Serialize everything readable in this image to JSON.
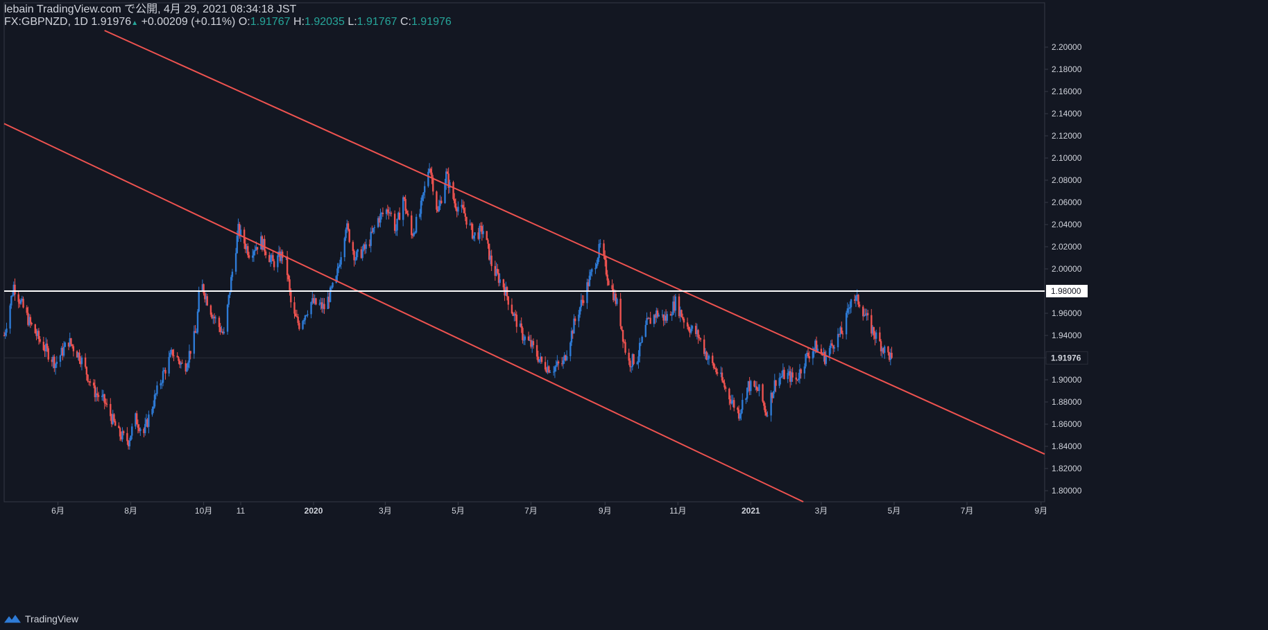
{
  "header": {
    "publisher": "lebain TradingView.com で公開, 4月 29, 2021 08:34:18 JST",
    "symbol": "FX:GBPNZD, 1D",
    "last": "1.91976",
    "change_arrow": "▲",
    "change": "+0.00209 (+0.11%)",
    "o_label": "O:",
    "o_value": "1.91767",
    "h_label": "H:",
    "h_value": "1.92035",
    "l_label": "L:",
    "l_value": "1.91767",
    "c_label": "C:",
    "c_value": "1.91976"
  },
  "footer": {
    "brand": "TradingView",
    "logo_icon": "tradingview-logo-icon"
  },
  "colors": {
    "bg": "#131722",
    "up": "#2e7bd6",
    "down": "#ef5350",
    "line": "#ef5350",
    "level": "#ffffff",
    "text": "#d1d4dc",
    "grid": "#363a45"
  },
  "chart_data": {
    "type": "candlestick",
    "symbol": "FX:GBPNZD",
    "interval": "1D",
    "ylim": [
      1.79,
      2.215
    ],
    "y_ticks": [
      "2.20000",
      "2.18000",
      "2.16000",
      "2.14000",
      "2.12000",
      "2.10000",
      "2.08000",
      "2.06000",
      "2.04000",
      "2.02000",
      "2.00000",
      "1.98000",
      "1.96000",
      "1.94000",
      "1.92000",
      "1.90000",
      "1.88000",
      "1.86000",
      "1.84000",
      "1.82000",
      "1.80000"
    ],
    "x_axis": {
      "start": "2019-04-17",
      "end": "2021-09-04"
    },
    "x_ticks": [
      {
        "label": "6月",
        "date": "2019-06-01"
      },
      {
        "label": "8月",
        "date": "2019-08-01"
      },
      {
        "label": "10月",
        "date": "2019-10-01"
      },
      {
        "label": "11",
        "date": "2019-11-01"
      },
      {
        "label": "2020",
        "date": "2020-01-01"
      },
      {
        "label": "3月",
        "date": "2020-03-01"
      },
      {
        "label": "5月",
        "date": "2020-05-01"
      },
      {
        "label": "7月",
        "date": "2020-07-01"
      },
      {
        "label": "9月",
        "date": "2020-09-01"
      },
      {
        "label": "11月",
        "date": "2020-11-01"
      },
      {
        "label": "2021",
        "date": "2021-01-01"
      },
      {
        "label": "3月",
        "date": "2021-03-01"
      },
      {
        "label": "5月",
        "date": "2021-05-01"
      },
      {
        "label": "7月",
        "date": "2021-07-01"
      },
      {
        "label": "9月",
        "date": "2021-09-01"
      }
    ],
    "horizontal_level": {
      "price": 1.98,
      "label": "1.98000"
    },
    "last_price": {
      "price": 1.91976,
      "label": "1.91976"
    },
    "trend_lines": [
      {
        "name": "upper-channel",
        "from": {
          "date": "2019-07-10",
          "price": 2.215
        },
        "to": {
          "date": "2021-09-04",
          "price": 1.833
        }
      },
      {
        "name": "lower-channel",
        "from": {
          "date": "2019-04-17",
          "price": 2.131
        },
        "to": {
          "date": "2021-02-14",
          "price": 1.79
        }
      }
    ],
    "price_path": [
      [
        "2019-04-17",
        1.94
      ],
      [
        "2019-04-25",
        1.985
      ],
      [
        "2019-05-08",
        1.952
      ],
      [
        "2019-05-18",
        1.933
      ],
      [
        "2019-05-30",
        1.915
      ],
      [
        "2019-06-10",
        1.935
      ],
      [
        "2019-06-20",
        1.92
      ],
      [
        "2019-07-01",
        1.89
      ],
      [
        "2019-07-10",
        1.88
      ],
      [
        "2019-07-22",
        1.851
      ],
      [
        "2019-07-30",
        1.845
      ],
      [
        "2019-08-05",
        1.865
      ],
      [
        "2019-08-12",
        1.852
      ],
      [
        "2019-08-20",
        1.88
      ],
      [
        "2019-08-28",
        1.905
      ],
      [
        "2019-09-05",
        1.925
      ],
      [
        "2019-09-15",
        1.91
      ],
      [
        "2019-09-25",
        1.945
      ],
      [
        "2019-09-28",
        1.99
      ],
      [
        "2019-10-08",
        1.96
      ],
      [
        "2019-10-18",
        1.94
      ],
      [
        "2019-10-24",
        1.99
      ],
      [
        "2019-10-30",
        2.035
      ],
      [
        "2019-11-08",
        2.015
      ],
      [
        "2019-11-18",
        2.025
      ],
      [
        "2019-11-28",
        2.005
      ],
      [
        "2019-12-08",
        2.015
      ],
      [
        "2019-12-14",
        1.96
      ],
      [
        "2019-12-20",
        1.95
      ],
      [
        "2019-12-30",
        1.97
      ],
      [
        "2020-01-10",
        1.965
      ],
      [
        "2020-01-20",
        1.99
      ],
      [
        "2020-01-28",
        2.04
      ],
      [
        "2020-02-05",
        2.01
      ],
      [
        "2020-02-15",
        2.02
      ],
      [
        "2020-02-24",
        2.045
      ],
      [
        "2020-03-04",
        2.055
      ],
      [
        "2020-03-10",
        2.035
      ],
      [
        "2020-03-16",
        2.065
      ],
      [
        "2020-03-23",
        2.03
      ],
      [
        "2020-03-30",
        2.05
      ],
      [
        "2020-04-07",
        2.095
      ],
      [
        "2020-04-14",
        2.05
      ],
      [
        "2020-04-21",
        2.085
      ],
      [
        "2020-04-28",
        2.06
      ],
      [
        "2020-05-06",
        2.05
      ],
      [
        "2020-05-14",
        2.03
      ],
      [
        "2020-05-22",
        2.035
      ],
      [
        "2020-05-30",
        2.0
      ],
      [
        "2020-06-08",
        1.985
      ],
      [
        "2020-06-16",
        1.96
      ],
      [
        "2020-06-24",
        1.94
      ],
      [
        "2020-07-02",
        1.93
      ],
      [
        "2020-07-10",
        1.915
      ],
      [
        "2020-07-18",
        1.91
      ],
      [
        "2020-07-28",
        1.915
      ],
      [
        "2020-08-06",
        1.95
      ],
      [
        "2020-08-14",
        1.975
      ],
      [
        "2020-08-22",
        2.0
      ],
      [
        "2020-08-28",
        2.02
      ],
      [
        "2020-09-04",
        1.99
      ],
      [
        "2020-09-12",
        1.965
      ],
      [
        "2020-09-20",
        1.915
      ],
      [
        "2020-09-28",
        1.92
      ],
      [
        "2020-10-06",
        1.95
      ],
      [
        "2020-10-14",
        1.96
      ],
      [
        "2020-10-22",
        1.955
      ],
      [
        "2020-10-30",
        1.97
      ],
      [
        "2020-11-08",
        1.95
      ],
      [
        "2020-11-18",
        1.94
      ],
      [
        "2020-11-26",
        1.92
      ],
      [
        "2020-12-05",
        1.905
      ],
      [
        "2020-12-14",
        1.885
      ],
      [
        "2020-12-22",
        1.87
      ],
      [
        "2020-12-30",
        1.895
      ],
      [
        "2021-01-08",
        1.89
      ],
      [
        "2021-01-14",
        1.87
      ],
      [
        "2021-01-22",
        1.9
      ],
      [
        "2021-01-30",
        1.905
      ],
      [
        "2021-02-08",
        1.9
      ],
      [
        "2021-02-16",
        1.92
      ],
      [
        "2021-02-24",
        1.93
      ],
      [
        "2021-03-04",
        1.92
      ],
      [
        "2021-03-12",
        1.935
      ],
      [
        "2021-03-20",
        1.945
      ],
      [
        "2021-03-26",
        1.975
      ],
      [
        "2021-04-02",
        1.97
      ],
      [
        "2021-04-10",
        1.95
      ],
      [
        "2021-04-18",
        1.935
      ],
      [
        "2021-04-24",
        1.925
      ],
      [
        "2021-04-29",
        1.91976
      ]
    ]
  }
}
